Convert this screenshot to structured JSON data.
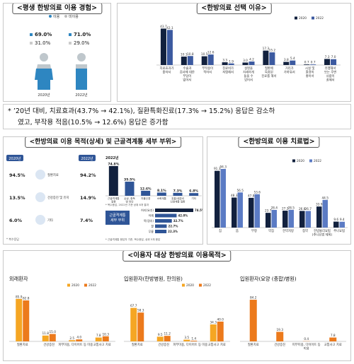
{
  "panel1": {
    "title": "<평생 한방의료 이용 경험>",
    "legend": [
      "이용",
      "미이용"
    ],
    "women": {
      "used": "69.0%",
      "unused": "31.0%",
      "year": "2020년"
    },
    "men": {
      "used": "71.0%",
      "unused": "29.0%",
      "year": "2022년"
    },
    "chart_data": {
      "type": "pie",
      "categories": [
        "이용",
        "미이용"
      ],
      "series": [
        {
          "name": "2020년",
          "values": [
            69.0,
            31.0
          ]
        },
        {
          "name": "2022년",
          "values": [
            71.0,
            29.0
          ]
        }
      ]
    }
  },
  "panel2": {
    "title": "<한방의료 선택 이유>",
    "legend": [
      "2020",
      "2022"
    ],
    "colors": {
      "2020": "#12213e",
      "2022": "#3c5aa0"
    },
    "chart_data": {
      "type": "bar",
      "categories": [
        "치료효과가 좋아서",
        "수술과 검사에 대한 부담이 없어서",
        "부작용이 적어서",
        "친료비가 저렴해서",
        "설명을 자세하게 들을 수 있어서",
        "질환에 특화된 진료를 해서",
        "거리가 가까워서",
        "시설 및 환경이 좋아서",
        "유행해서 또는 주변 사람이 권해서"
      ],
      "category_lines": [
        [
          "치료효과가",
          "좋아서"
        ],
        [
          "수술과",
          "검사에 대한",
          "부담이",
          "없어서"
        ],
        [
          "부작용이",
          "적어서"
        ],
        [
          "친료비가",
          "저렴해서"
        ],
        [
          "설명을",
          "자세하게",
          "들을 수",
          "있어서"
        ],
        [
          "질환에",
          "특화된",
          "진료를 해서"
        ],
        [
          "거리가",
          "가까워서"
        ],
        [
          "시설 및",
          "환경이",
          "좋아서"
        ],
        [
          "유행해서",
          "또는 주변",
          "사람이",
          "권해서"
        ]
      ],
      "series": [
        {
          "name": "2020",
          "values": [
            43.7,
            10.1,
            10.5,
            3.3,
            3.0,
            17.3,
            3.8,
            0.7,
            7.3
          ]
        },
        {
          "name": "2022",
          "values": [
            42.1,
            10.8,
            12.6,
            1.9,
            4.2,
            15.2,
            5.4,
            0.7,
            7.0
          ]
        }
      ],
      "labels": {
        "2020": [
          "43.7",
          "10.1",
          "10.5",
          "3.3",
          "3.0",
          "17.3",
          "3.8",
          "0.7",
          "7.3"
        ],
        "2022": [
          "42.1",
          "10.8",
          "12.6",
          "1.9",
          "4.2",
          "15.2",
          "5.4",
          "0.7",
          "7.0"
        ]
      },
      "ylim": [
        0,
        50
      ]
    }
  },
  "note": {
    "line1": "*  ’20년 대비, 치료효과(43.7% → 42.1%), 질환특화진료(17.3% → 15.2%) 응답은 감소하",
    "line2": "였고, 부작용 적음(10.5% → 12.6%) 응답은 증가함"
  },
  "panel3": {
    "title": "<한방의료 이용 목적(상세) 및 근골격계통 세부 부위>",
    "year_left": "2020년",
    "year_right": "2022년",
    "rows": [
      {
        "left": "94.5%",
        "label": "질환치료",
        "right": "94.2%",
        "icon": "medical-icon"
      },
      {
        "left": "13.5%",
        "label": "건강증진 및 유지",
        "right": "14.9%",
        "icon": "health-icon"
      },
      {
        "left": "6.0%",
        "label": "기타",
        "right": "7.4%",
        "icon": "etc-icon"
      }
    ],
    "source_note": "* 복수응답",
    "chart_year": "2022년",
    "chart_data": {
      "type": "bar",
      "categories": [
        "근골격계통 질환",
        "손상, 중독 및 외인",
        "자율신경",
        "소화계통",
        "호흡/내분비/신경계통",
        "기타"
      ],
      "category_lines": [
        [
          "근골격계통",
          "질환"
        ],
        [
          "손상, 중독",
          "및 외인"
        ],
        [
          "자율신경"
        ],
        [
          "소화계통"
        ],
        [
          "호흡/내분비",
          "신경계통 질환"
        ],
        [
          "기타"
        ]
      ],
      "values": [
        74.8,
        35.5,
        12.6,
        8.1,
        7.3,
        6.8
      ],
      "value_labels": [
        "74.8%",
        "35.5%",
        "12.6%",
        "8.1%",
        "7.3%",
        "6.8%"
      ]
    },
    "chart_note": "* 복수응답, 2022년 기준 상위 8개 결과",
    "sub_label": [
      "근골격계통",
      "세부 부위"
    ],
    "sub_chart": {
      "type": "bar",
      "categories": [
        "허리(요추)",
        "어깨",
        "목(경추)",
        "팔",
        "무릎"
      ],
      "values": [
        74.5,
        42.0,
        32.7,
        22.7,
        22.3
      ],
      "value_labels": [
        "74.5%",
        "42.0%",
        "32.7%",
        "22.7%",
        "22.3%"
      ]
    },
    "sub_note": "* 근골격계통 응답자 기준, 복수응답, 상위 5개 응답"
  },
  "panel4": {
    "title": "<한방의료 이용 치료법>",
    "legend": [
      "2020",
      "2022"
    ],
    "colors": {
      "2020": "#12213e",
      "2022": "#5b7bc4"
    },
    "chart_data": {
      "type": "bar",
      "categories": [
        "침",
        "뜸",
        "부항",
        "약침",
        "한약처방",
        "첩약",
        "한방물리요법(추나요법 제외)",
        "추나요법"
      ],
      "category_lines": [
        [
          "침"
        ],
        [
          "뜸"
        ],
        [
          "부항"
        ],
        [
          "약침"
        ],
        [
          "한약처방"
        ],
        [
          "첩약"
        ],
        [
          "한방물리요법",
          "(추나요법 제외)"
        ],
        [
          "추나요법"
        ]
      ],
      "series": [
        {
          "name": "2020",
          "values": [
            91.3,
            48.3,
            47.8,
            23.7,
            27.2,
            26.8,
            33.9,
            9.6
          ]
        },
        {
          "name": "2022",
          "values": [
            94.3,
            56.5,
            53.6,
            28.4,
            28.5,
            26.7,
            44.5,
            9.4
          ]
        }
      ],
      "labels": {
        "2020": [
          "91.3",
          "48.3",
          "47.8",
          "23.7",
          "27.2",
          "26.8",
          "33.9",
          "9.6"
        ],
        "2022": [
          "94.3",
          "56.5",
          "53.6",
          "28.4",
          "28.5",
          "26.7",
          "44.5",
          "9.4"
        ]
      },
      "ylim": [
        0,
        100
      ]
    }
  },
  "panel5": {
    "title": "<이용자 대상 한방의료 이용목적>",
    "legend": [
      "2020",
      "2022"
    ],
    "colors": {
      "2020": "#f5a623",
      "2022": "#ec7a1c"
    },
    "charts": [
      {
        "title": "외래환자",
        "type": "bar",
        "categories": [
          "질환치료",
          "건강증진",
          "피부미용, 다이어트 등 미용",
          "교통사고 치료"
        ],
        "category_lines": [
          [
            "질환치료"
          ],
          [
            "건강증진"
          ],
          [
            "피부미용, 다이어트 등 미용"
          ],
          [
            "교통사고 치료"
          ]
        ],
        "series": [
          {
            "name": "2020",
            "values": [
              85.9,
              11.8,
              2.5,
              7.8
            ]
          },
          {
            "name": "2022",
            "values": [
              82.8,
              15.0,
              4.0,
              10.3
            ]
          }
        ],
        "labels": {
          "2020": [
            "85.9",
            "11.8",
            "2.5",
            "7.8"
          ],
          "2022": [
            "82.8",
            "15.0",
            "4.0",
            "10.3"
          ]
        },
        "ylim": [
          0,
          100
        ]
      },
      {
        "title": "입원환자(한방병원, 한의원)",
        "type": "bar",
        "categories": [
          "질환치료",
          "건강증진",
          "피부미용, 다이어트 등 미용",
          "교통사고 치료"
        ],
        "category_lines": [
          [
            "질환치료"
          ],
          [
            "건강증진"
          ],
          [
            "피부미용, 다이어트 등 미용"
          ],
          [
            "교통사고 치료"
          ]
        ],
        "series": [
          {
            "name": "2020",
            "values": [
              67.7,
              9.5,
              3.5,
              34.3
            ]
          },
          {
            "name": "2022",
            "values": [
              58.3,
              11.2,
              1.4,
              40.0
            ]
          }
        ],
        "labels": {
          "2020": [
            "67.7",
            "9.5",
            "3.5",
            "34.3"
          ],
          "2022": [
            "58.3",
            "11.2",
            "1.4",
            "40.0"
          ]
        },
        "ylim": [
          0,
          100
        ]
      },
      {
        "title": "입원환자(요양 (종합)병원)",
        "type": "bar",
        "categories": [
          "질환치료",
          "건강증진",
          "피부미용, 다이어트 등 미용",
          "교통사고 치료"
        ],
        "category_lines": [
          [
            "질환치료"
          ],
          [
            "건강증진"
          ],
          [
            "피부미용, 다이어트 등",
            "미용"
          ],
          [
            "교통사고 치료"
          ]
        ],
        "series": [
          {
            "name": "2022",
            "values": [
              84.2,
              19.3,
              0.4,
              7.8
            ]
          }
        ],
        "labels": {
          "2022": [
            "84.2",
            "19.3",
            "0.4",
            "7.8"
          ]
        },
        "ylim": [
          0,
          100
        ]
      }
    ]
  }
}
